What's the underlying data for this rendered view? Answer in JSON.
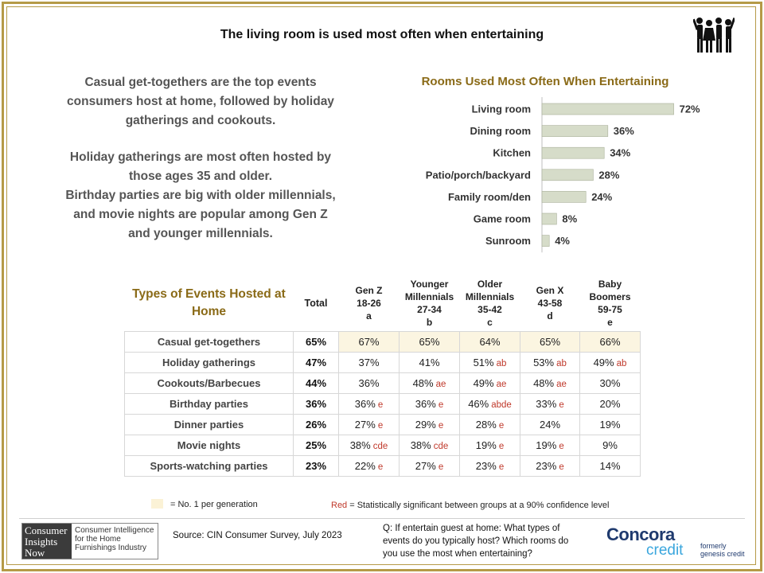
{
  "title": "The living room is used most often when entertaining",
  "intro": {
    "para1": "Casual get-togethers are the top events consumers host at home, followed by holiday gatherings and cookouts.",
    "para2_line1": "Holiday gatherings are most often hosted by those ages 35 and older.",
    "para2_line2": "Birthday parties are big with older millennials, and movie nights are popular among Gen Z and younger millennials."
  },
  "chart_data": {
    "type": "bar",
    "orientation": "horizontal",
    "title": "Rooms Used Most Often When Entertaining",
    "categories": [
      "Living room",
      "Dining room",
      "Kitchen",
      "Patio/porch/backyard",
      "Family room/den",
      "Game room",
      "Sunroom"
    ],
    "values": [
      72,
      36,
      34,
      28,
      24,
      8,
      4
    ],
    "value_labels": [
      "72%",
      "36%",
      "34%",
      "28%",
      "24%",
      "8%",
      "4%"
    ],
    "unit": "%",
    "xlim": [
      0,
      100
    ],
    "bar_color": "#d6dcc9",
    "grid": false
  },
  "table": {
    "header": {
      "types": "Types of Events Hosted at Home",
      "total": "Total",
      "groups": [
        {
          "line1": "Gen Z",
          "line2": "18-26",
          "line3": "a"
        },
        {
          "line1": "Younger Millennials",
          "line2": "27-34",
          "line3": "b"
        },
        {
          "line1": "Older Millennials",
          "line2": "35-42",
          "line3": "c"
        },
        {
          "line1": "Gen X",
          "line2": "43-58",
          "line3": "d"
        },
        {
          "line1": "Baby Boomers",
          "line2": "59-75",
          "line3": "e"
        }
      ]
    },
    "rows": [
      {
        "label": "Casual get-togethers",
        "total": "65%",
        "cells": [
          {
            "value": "67%",
            "sig": ""
          },
          {
            "value": "65%",
            "sig": ""
          },
          {
            "value": "64%",
            "sig": ""
          },
          {
            "value": "65%",
            "sig": ""
          },
          {
            "value": "66%",
            "sig": ""
          }
        ]
      },
      {
        "label": "Holiday gatherings",
        "total": "47%",
        "cells": [
          {
            "value": "37%",
            "sig": ""
          },
          {
            "value": "41%",
            "sig": ""
          },
          {
            "value": "51%",
            "sig": "ab"
          },
          {
            "value": "53%",
            "sig": "ab"
          },
          {
            "value": "49%",
            "sig": "ab"
          }
        ]
      },
      {
        "label": "Cookouts/Barbecues",
        "total": "44%",
        "cells": [
          {
            "value": "36%",
            "sig": ""
          },
          {
            "value": "48%",
            "sig": "ae"
          },
          {
            "value": "49%",
            "sig": "ae"
          },
          {
            "value": "48%",
            "sig": "ae"
          },
          {
            "value": "30%",
            "sig": ""
          }
        ]
      },
      {
        "label": "Birthday parties",
        "total": "36%",
        "cells": [
          {
            "value": "36%",
            "sig": "e"
          },
          {
            "value": "36%",
            "sig": "e"
          },
          {
            "value": "46%",
            "sig": "abde"
          },
          {
            "value": "33%",
            "sig": "e"
          },
          {
            "value": "20%",
            "sig": ""
          }
        ]
      },
      {
        "label": "Dinner parties",
        "total": "26%",
        "cells": [
          {
            "value": "27%",
            "sig": "e"
          },
          {
            "value": "29%",
            "sig": "e"
          },
          {
            "value": "28%",
            "sig": "e"
          },
          {
            "value": "24%",
            "sig": ""
          },
          {
            "value": "19%",
            "sig": ""
          }
        ]
      },
      {
        "label": "Movie nights",
        "total": "25%",
        "cells": [
          {
            "value": "38%",
            "sig": "cde"
          },
          {
            "value": "38%",
            "sig": "cde"
          },
          {
            "value": "19%",
            "sig": "e"
          },
          {
            "value": "19%",
            "sig": "e"
          },
          {
            "value": "9%",
            "sig": ""
          }
        ]
      },
      {
        "label": "Sports-watching parties",
        "total": "23%",
        "cells": [
          {
            "value": "22%",
            "sig": "e"
          },
          {
            "value": "27%",
            "sig": "e"
          },
          {
            "value": "23%",
            "sig": "e"
          },
          {
            "value": "23%",
            "sig": "e"
          },
          {
            "value": "14%",
            "sig": ""
          }
        ]
      }
    ],
    "highlight_row": 0,
    "highlight_color": "#fbf5e1"
  },
  "legend": {
    "swatch_text": "= No. 1 per generation",
    "red_word": "Red",
    "red_text": " = Statistically significant between groups at a 90% confidence level",
    "red_color": "#c0392b"
  },
  "footer": {
    "logo_left": "Consumer Insights Now",
    "logo_right": "Consumer Intelligence for the Home Furnishings Industry",
    "source": "Source: CIN Consumer Survey, July 2023",
    "question": "Q: If entertain guest at home: What types of events do you typically host? Which rooms do you use the most when entertaining?",
    "brand_name": "Concora",
    "brand_sub": "credit",
    "formerly_line1": "formerly",
    "formerly_line2": "genesis credit"
  },
  "colors": {
    "frame": "#b59a47",
    "accent_title": "#8a6a17"
  },
  "icons": {
    "people": "people-group-icon"
  }
}
